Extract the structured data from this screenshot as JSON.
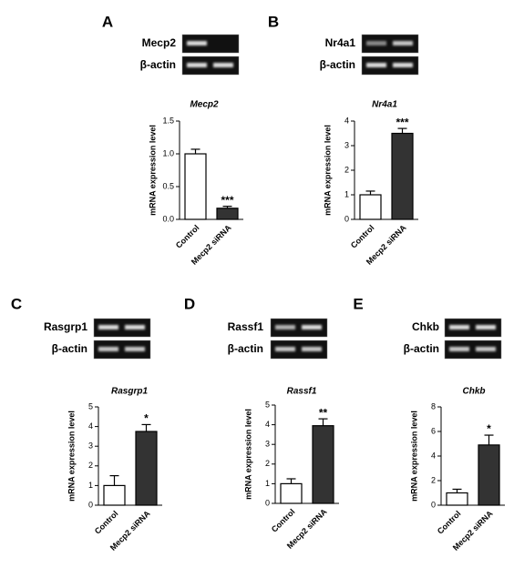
{
  "chart_data": [
    {
      "type": "bar",
      "panel": "A",
      "gel_labels": [
        "Mecp2",
        "β-actin"
      ],
      "title": "Mecp2",
      "ylabel": "mRNA expression level",
      "categories": [
        "Control",
        "Mecp2 siRNA"
      ],
      "values": [
        1.0,
        0.17
      ],
      "errors": [
        0.07,
        0.03
      ],
      "colors": [
        "#ffffff",
        "#333333"
      ],
      "significance": "***",
      "ylim": [
        0,
        1.5
      ],
      "yticks": [
        {
          "value": 0,
          "label": "0.0"
        },
        0.5,
        {
          "value": 1,
          "label": "1.0"
        },
        1.5
      ]
    },
    {
      "type": "bar",
      "panel": "B",
      "gel_labels": [
        "Nr4a1",
        "β-actin"
      ],
      "title": "Nr4a1",
      "ylabel": "mRNA expression level",
      "categories": [
        "Control",
        "Mecp2 siRNA"
      ],
      "values": [
        1.0,
        3.5
      ],
      "errors": [
        0.15,
        0.2
      ],
      "colors": [
        "#ffffff",
        "#333333"
      ],
      "significance": "***",
      "ylim": [
        0,
        4
      ],
      "yticks": [
        0,
        1,
        2,
        3,
        4
      ]
    },
    {
      "type": "bar",
      "panel": "C",
      "gel_labels": [
        "Rasgrp1",
        "β-actin"
      ],
      "title": "Rasgrp1",
      "ylabel": "mRNA expression level",
      "categories": [
        "Control",
        "Mecp2 siRNA"
      ],
      "values": [
        1.0,
        3.75
      ],
      "errors": [
        0.5,
        0.35
      ],
      "colors": [
        "#ffffff",
        "#333333"
      ],
      "significance": "*",
      "ylim": [
        0,
        5
      ],
      "yticks": [
        0,
        1,
        2,
        3,
        4,
        5
      ]
    },
    {
      "type": "bar",
      "panel": "D",
      "gel_labels": [
        "Rassf1",
        "β-actin"
      ],
      "title": "Rassf1",
      "ylabel": "mRNA expression level",
      "categories": [
        "Control",
        "Mecp2 siRNA"
      ],
      "values": [
        1.0,
        3.95
      ],
      "errors": [
        0.25,
        0.35
      ],
      "colors": [
        "#ffffff",
        "#333333"
      ],
      "significance": "**",
      "ylim": [
        0,
        5
      ],
      "yticks": [
        0,
        1,
        2,
        3,
        4,
        5
      ]
    },
    {
      "type": "bar",
      "panel": "E",
      "gel_labels": [
        "Chkb",
        "β-actin"
      ],
      "title": "Chkb",
      "ylabel": "mRNA expression level",
      "categories": [
        "Control",
        "Mecp2 siRNA"
      ],
      "values": [
        1.0,
        4.9
      ],
      "errors": [
        0.3,
        0.8
      ],
      "colors": [
        "#ffffff",
        "#333333"
      ],
      "significance": "*",
      "ylim": [
        0,
        8
      ],
      "yticks": [
        0,
        2,
        4,
        6,
        8
      ]
    }
  ]
}
